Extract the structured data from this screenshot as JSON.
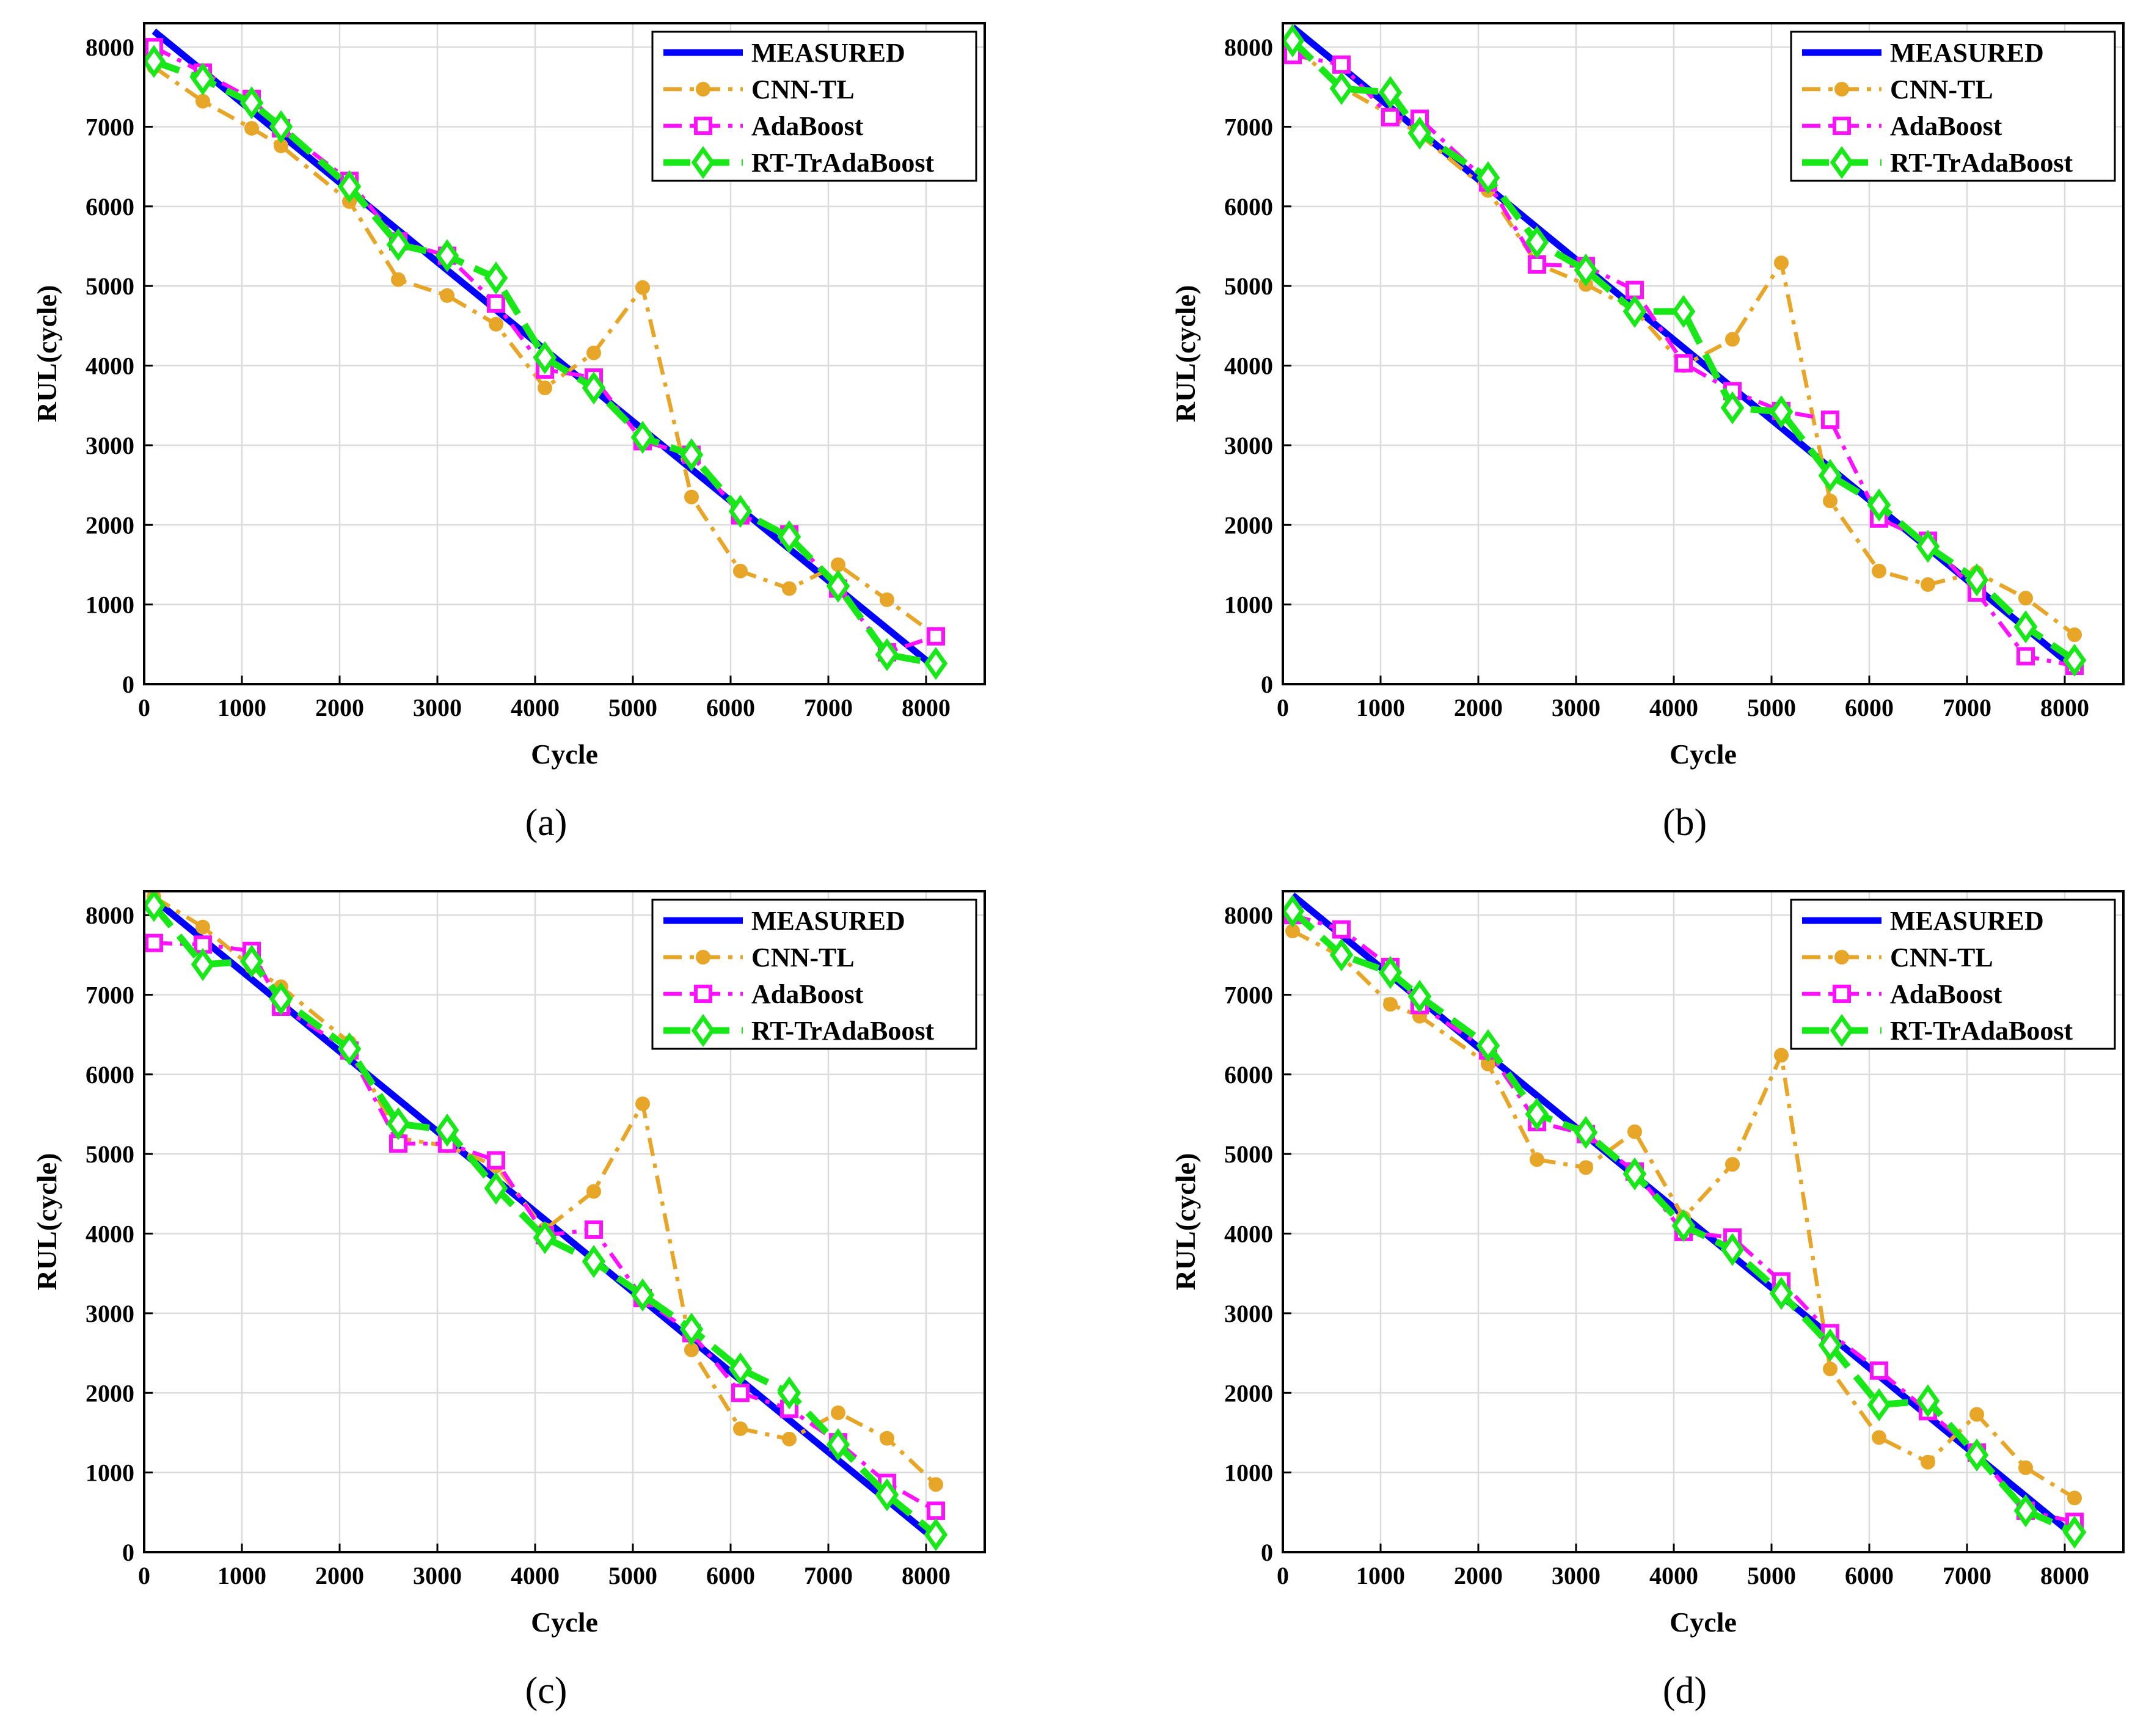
{
  "figure": {
    "captions": [
      "(a)",
      "(b)",
      "(c)",
      "(d)"
    ],
    "series_colors": {
      "MEASURED": "#0000ff",
      "CNN-TL": "#e8a628",
      "AdaBoost": "#ff10ff",
      "RT-TrAdaBoost": "#18e818"
    }
  },
  "chart_data": [
    {
      "type": "line",
      "panel": "(a)",
      "xlabel": "Cycle",
      "ylabel": "RUL(cycle)",
      "xlim": [
        0,
        8600
      ],
      "ylim": [
        0,
        8300
      ],
      "xticks": [
        0,
        1000,
        2000,
        3000,
        4000,
        5000,
        6000,
        7000,
        8000
      ],
      "yticks": [
        0,
        1000,
        2000,
        3000,
        4000,
        5000,
        6000,
        7000,
        8000
      ],
      "grid": true,
      "legend": "top-right",
      "series": [
        {
          "name": "MEASURED",
          "x": [
            100,
            8100
          ],
          "y": [
            8200,
            200
          ]
        },
        {
          "name": "CNN-TL",
          "x": [
            100,
            600,
            1100,
            1400,
            2100,
            2600,
            3100,
            3600,
            4100,
            4600,
            5100,
            5600,
            6100,
            6600,
            7100,
            7600,
            8100
          ],
          "y": [
            7750,
            7320,
            6980,
            6760,
            6060,
            5080,
            4880,
            4520,
            3720,
            4160,
            4980,
            2350,
            1420,
            1200,
            1500,
            1060,
            610
          ]
        },
        {
          "name": "AdaBoost",
          "x": [
            100,
            600,
            1100,
            1400,
            2100,
            2600,
            3100,
            3600,
            4100,
            4600,
            5100,
            5600,
            6100,
            6600,
            7100,
            7600,
            8100
          ],
          "y": [
            8000,
            7680,
            7350,
            6980,
            6320,
            5560,
            5380,
            4780,
            3950,
            3850,
            3050,
            2880,
            2120,
            1880,
            1200,
            400,
            600
          ]
        },
        {
          "name": "RT-TrAdaBoost",
          "x": [
            100,
            600,
            1100,
            1400,
            2100,
            2600,
            3100,
            3600,
            4100,
            4600,
            5100,
            5600,
            6100,
            6600,
            7100,
            7600,
            8100
          ],
          "y": [
            7820,
            7600,
            7300,
            7000,
            6250,
            5520,
            5380,
            5100,
            4100,
            3720,
            3100,
            2880,
            2170,
            1850,
            1230,
            370,
            260
          ]
        }
      ]
    },
    {
      "type": "line",
      "panel": "(b)",
      "xlabel": "Cycle",
      "ylabel": "RUL(cycle)",
      "xlim": [
        0,
        8600
      ],
      "ylim": [
        0,
        8300
      ],
      "xticks": [
        0,
        1000,
        2000,
        3000,
        4000,
        5000,
        6000,
        7000,
        8000
      ],
      "yticks": [
        0,
        1000,
        2000,
        3000,
        4000,
        5000,
        6000,
        7000,
        8000
      ],
      "grid": true,
      "legend": "top-right",
      "series": [
        {
          "name": "MEASURED",
          "x": [
            100,
            8100
          ],
          "y": [
            8250,
            200
          ]
        },
        {
          "name": "CNN-TL",
          "x": [
            100,
            600,
            1100,
            1400,
            2100,
            2600,
            3100,
            3600,
            4100,
            4600,
            5100,
            5600,
            6100,
            6600,
            7100,
            7600,
            8100
          ],
          "y": [
            8020,
            7500,
            7150,
            6900,
            6200,
            5280,
            5020,
            4700,
            4000,
            4330,
            5290,
            2300,
            1420,
            1250,
            1400,
            1080,
            620
          ]
        },
        {
          "name": "AdaBoost",
          "x": [
            100,
            600,
            1100,
            1400,
            2100,
            2600,
            3100,
            3600,
            4100,
            4600,
            5100,
            5600,
            6100,
            6600,
            7100,
            7600,
            8100
          ],
          "y": [
            7900,
            7780,
            7120,
            7100,
            6300,
            5270,
            5250,
            4950,
            4030,
            3680,
            3430,
            3320,
            2080,
            1800,
            1150,
            350,
            230
          ]
        },
        {
          "name": "RT-TrAdaBoost",
          "x": [
            100,
            600,
            1100,
            1400,
            2100,
            2600,
            3100,
            3600,
            4100,
            4600,
            5100,
            5600,
            6100,
            6600,
            7100,
            7600,
            8100
          ],
          "y": [
            8080,
            7480,
            7430,
            6920,
            6360,
            5550,
            5200,
            4680,
            4680,
            3470,
            3420,
            2620,
            2250,
            1730,
            1310,
            720,
            300
          ]
        }
      ]
    },
    {
      "type": "line",
      "panel": "(c)",
      "xlabel": "Cycle",
      "ylabel": "RUL(cycle)",
      "xlim": [
        0,
        8600
      ],
      "ylim": [
        0,
        8300
      ],
      "xticks": [
        0,
        1000,
        2000,
        3000,
        4000,
        5000,
        6000,
        7000,
        8000
      ],
      "yticks": [
        0,
        1000,
        2000,
        3000,
        4000,
        5000,
        6000,
        7000,
        8000
      ],
      "grid": true,
      "legend": "top-right",
      "series": [
        {
          "name": "MEASURED",
          "x": [
            100,
            8100
          ],
          "y": [
            8200,
            150
          ]
        },
        {
          "name": "CNN-TL",
          "x": [
            100,
            600,
            1100,
            1400,
            2100,
            2600,
            3100,
            3600,
            4100,
            4600,
            5100,
            5600,
            6100,
            6600,
            7100,
            7600,
            8100
          ],
          "y": [
            8230,
            7850,
            7350,
            7100,
            6400,
            5200,
            5100,
            4850,
            4050,
            4530,
            5630,
            2540,
            1550,
            1420,
            1750,
            1430,
            850
          ]
        },
        {
          "name": "AdaBoost",
          "x": [
            100,
            600,
            1100,
            1400,
            2100,
            2600,
            3100,
            3600,
            4100,
            4600,
            5100,
            5600,
            6100,
            6600,
            7100,
            7600,
            8100
          ],
          "y": [
            7650,
            7630,
            7550,
            6850,
            6300,
            5130,
            5130,
            4920,
            3980,
            4050,
            3190,
            2750,
            2000,
            1800,
            1380,
            870,
            520
          ]
        },
        {
          "name": "RT-TrAdaBoost",
          "x": [
            100,
            600,
            1100,
            1400,
            2100,
            2600,
            3100,
            3600,
            4100,
            4600,
            5100,
            5600,
            6100,
            6600,
            7100,
            7600,
            8100
          ],
          "y": [
            8120,
            7380,
            7420,
            6950,
            6320,
            5380,
            5300,
            4570,
            3950,
            3650,
            3230,
            2800,
            2300,
            2000,
            1350,
            720,
            220
          ]
        }
      ]
    },
    {
      "type": "line",
      "panel": "(d)",
      "xlabel": "Cycle",
      "ylabel": "RUL(cycle)",
      "xlim": [
        0,
        8600
      ],
      "ylim": [
        0,
        8300
      ],
      "xticks": [
        0,
        1000,
        2000,
        3000,
        4000,
        5000,
        6000,
        7000,
        8000
      ],
      "yticks": [
        0,
        1000,
        2000,
        3000,
        4000,
        5000,
        6000,
        7000,
        8000
      ],
      "grid": true,
      "legend": "top-right",
      "series": [
        {
          "name": "MEASURED",
          "x": [
            100,
            8100
          ],
          "y": [
            8250,
            200
          ]
        },
        {
          "name": "CNN-TL",
          "x": [
            100,
            600,
            1100,
            1400,
            2100,
            2600,
            3100,
            3600,
            4100,
            4600,
            5100,
            5600,
            6100,
            6600,
            7100,
            7600,
            8100
          ],
          "y": [
            7800,
            7480,
            6880,
            6730,
            6130,
            4930,
            4830,
            5280,
            4200,
            4870,
            6240,
            2300,
            1440,
            1130,
            1730,
            1060,
            680
          ]
        },
        {
          "name": "AdaBoost",
          "x": [
            100,
            600,
            1100,
            1400,
            2100,
            2600,
            3100,
            3600,
            4100,
            4600,
            5100,
            5600,
            6100,
            6600,
            7100,
            7600,
            8100
          ],
          "y": [
            8000,
            7820,
            7350,
            6870,
            6300,
            5400,
            5250,
            4780,
            4020,
            3950,
            3400,
            2750,
            2280,
            1770,
            1250,
            520,
            380
          ]
        },
        {
          "name": "RT-TrAdaBoost",
          "x": [
            100,
            600,
            1100,
            1400,
            2100,
            2600,
            3100,
            3600,
            4100,
            4600,
            5100,
            5600,
            6100,
            6600,
            7100,
            7600,
            8100
          ],
          "y": [
            8050,
            7500,
            7280,
            6980,
            6360,
            5500,
            5270,
            4750,
            4100,
            3800,
            3250,
            2600,
            1850,
            1900,
            1220,
            520,
            250
          ]
        }
      ]
    }
  ]
}
